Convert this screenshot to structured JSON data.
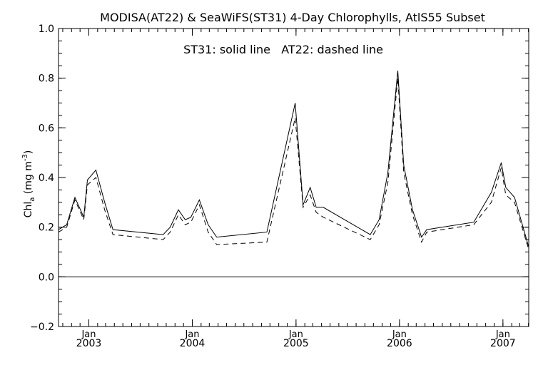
{
  "chart_data": {
    "type": "line",
    "title": "MODISA(AT22) & SeaWiFS(ST31) 4-Day Chlorophylls, AtlS55 Subset",
    "annotation": "ST31: solid line   AT22: dashed line",
    "ylabel": "Chl",
    "ylabel_sub": "a",
    "ylabel_unit_open": " (mg m",
    "ylabel_unit_sup": "-3",
    "ylabel_unit_close": ")",
    "xlabel": "",
    "ylim": [
      -0.2,
      1.0
    ],
    "xlim": [
      "2002-09-16",
      "2007-04-02"
    ],
    "yticks": [
      {
        "value": -0.2,
        "label": "−0.2"
      },
      {
        "value": 0.0,
        "label": "0.0"
      },
      {
        "value": 0.2,
        "label": "0.2"
      },
      {
        "value": 0.4,
        "label": "0.4"
      },
      {
        "value": 0.6,
        "label": "0.6"
      },
      {
        "value": 0.8,
        "label": "0.8"
      },
      {
        "value": 1.0,
        "label": "1.0"
      }
    ],
    "xticks": [
      {
        "date": "2003-01-01",
        "month": "Jan",
        "year": "2003"
      },
      {
        "date": "2004-01-01",
        "month": "Jan",
        "year": "2004"
      },
      {
        "date": "2005-01-01",
        "month": "Jan",
        "year": "2005"
      },
      {
        "date": "2006-01-01",
        "month": "Jan",
        "year": "2006"
      },
      {
        "date": "2007-01-01",
        "month": "Jan",
        "year": "2007"
      }
    ],
    "reference_line": 0.0,
    "grid": false,
    "series": [
      {
        "name": "ST31",
        "style": "solid",
        "x": [
          "2002-09-16",
          "2002-10-15",
          "2002-11-13",
          "2002-12-14",
          "2002-12-27",
          "2003-01-26",
          "2003-02-26",
          "2003-03-27",
          "2003-09-20",
          "2003-10-15",
          "2003-11-13",
          "2003-12-07",
          "2003-12-27",
          "2004-01-26",
          "2004-02-26",
          "2004-03-27",
          "2004-09-20",
          "2004-12-29",
          "2005-01-26",
          "2005-02-20",
          "2005-03-13",
          "2005-04-07",
          "2005-09-20",
          "2005-10-21",
          "2005-11-21",
          "2005-12-26",
          "2006-01-16",
          "2006-02-16",
          "2006-03-20",
          "2006-04-07",
          "2006-09-20",
          "2006-11-21",
          "2006-12-26",
          "2007-01-11",
          "2007-02-11",
          "2007-04-02"
        ],
        "y": [
          0.19,
          0.21,
          0.32,
          0.24,
          0.39,
          0.43,
          0.3,
          0.19,
          0.17,
          0.2,
          0.27,
          0.23,
          0.24,
          0.31,
          0.21,
          0.16,
          0.18,
          0.7,
          0.29,
          0.36,
          0.28,
          0.28,
          0.17,
          0.23,
          0.42,
          0.83,
          0.45,
          0.27,
          0.16,
          0.19,
          0.22,
          0.34,
          0.46,
          0.36,
          0.32,
          0.12
        ]
      },
      {
        "name": "AT22",
        "style": "dashed",
        "x": [
          "2002-09-16",
          "2002-10-15",
          "2002-11-13",
          "2002-12-14",
          "2002-12-27",
          "2003-01-26",
          "2003-02-26",
          "2003-03-27",
          "2003-09-20",
          "2003-10-15",
          "2003-11-13",
          "2003-12-07",
          "2003-12-27",
          "2004-01-26",
          "2004-02-26",
          "2004-03-27",
          "2004-09-20",
          "2004-12-29",
          "2005-01-26",
          "2005-02-20",
          "2005-03-13",
          "2005-04-07",
          "2005-09-20",
          "2005-10-21",
          "2005-11-21",
          "2005-12-26",
          "2006-01-16",
          "2006-02-16",
          "2006-03-20",
          "2006-04-07",
          "2006-09-20",
          "2006-11-21",
          "2006-12-26",
          "2007-01-11",
          "2007-02-11",
          "2007-04-02"
        ],
        "y": [
          0.18,
          0.2,
          0.31,
          0.23,
          0.37,
          0.4,
          0.27,
          0.17,
          0.15,
          0.18,
          0.25,
          0.21,
          0.22,
          0.29,
          0.18,
          0.13,
          0.14,
          0.64,
          0.28,
          0.33,
          0.26,
          0.24,
          0.15,
          0.21,
          0.38,
          0.8,
          0.42,
          0.25,
          0.14,
          0.18,
          0.21,
          0.3,
          0.44,
          0.33,
          0.3,
          0.11
        ]
      }
    ]
  }
}
